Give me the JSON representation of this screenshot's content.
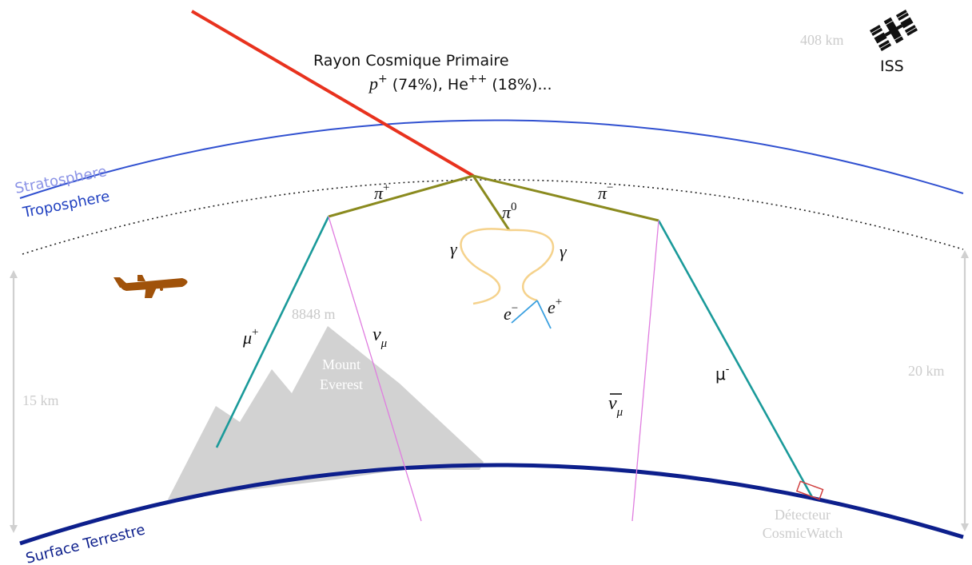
{
  "primary": {
    "title": "Rayon Cosmique Primaire",
    "p": "p",
    "p_charge": "+",
    "p_pct": " (74%), He",
    "he_charge": "++",
    "he_pct": " (18%)..."
  },
  "iss": {
    "label": "ISS",
    "altitude": "408 km"
  },
  "layers": {
    "stratosphere": "Stratosphere",
    "troposphere": "Troposphere",
    "surface": "Surface Terrestre"
  },
  "mountain": {
    "height": "8848 m",
    "name_line1": "Mount",
    "name_line2": "Everest"
  },
  "scales": {
    "left": "15 km",
    "right": "20 km"
  },
  "particles": {
    "pi_plus": "π",
    "pi_plus_sup": "+",
    "pi_zero": "π",
    "pi_zero_sup": "0",
    "pi_minus": "π",
    "pi_minus_sup": "−",
    "gamma_left": "γ",
    "gamma_right": "γ",
    "e_minus": "e",
    "e_minus_sup": "−",
    "e_plus": "e",
    "e_plus_sup": "+",
    "mu_plus": "μ",
    "mu_plus_sup": "+",
    "nu_mu": "ν",
    "nu_mu_sub": "μ",
    "nubar_mu": "ν",
    "nubar_mu_sub": "μ",
    "mu_minus": "μ",
    "mu_minus_sup": "-"
  },
  "detector": {
    "line1": "Détecteur",
    "line2": "CosmicWatch"
  },
  "colors": {
    "primary_ray": "#e8321e",
    "pions": "#8a8a1e",
    "muons": "#1a9a9a",
    "neutrinos": "#e07de0",
    "gammas": "#f5d28c",
    "electrons": "#3aa0e0",
    "atmosphere": "#3050d0",
    "surface": "#0d1f8c",
    "mountain": "#d2d2d2",
    "plane": "#a0520a",
    "detector": "#d04040",
    "scale": "#d0d0d0"
  }
}
